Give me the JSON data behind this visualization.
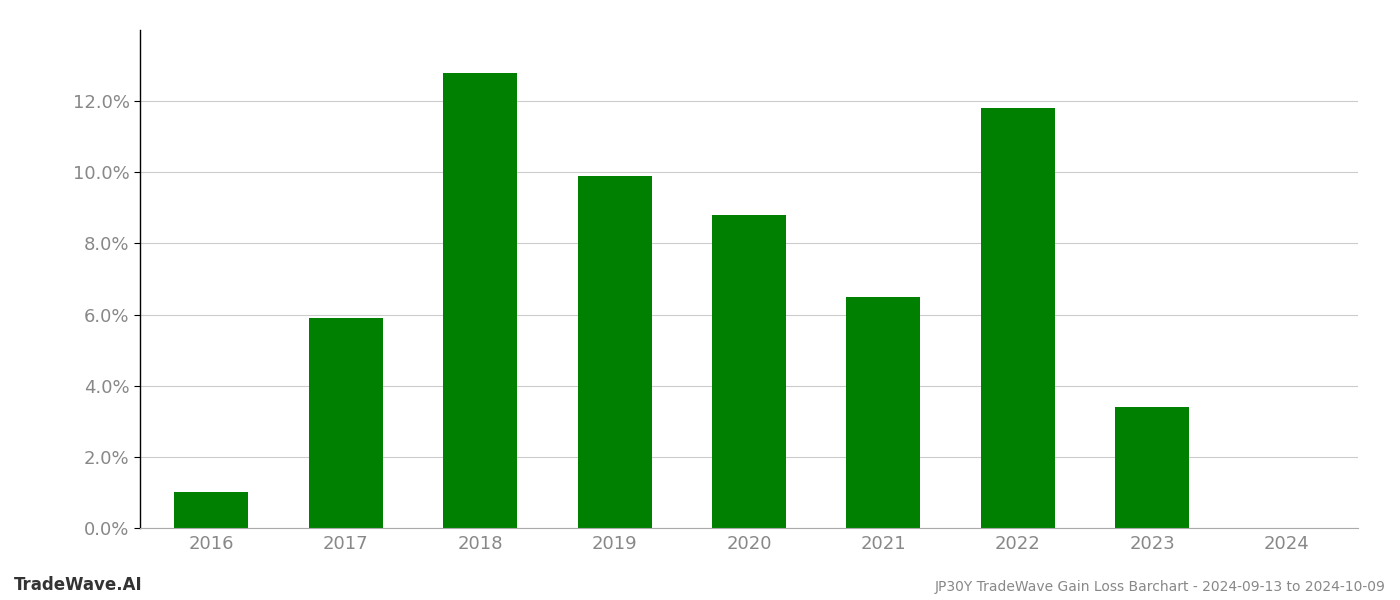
{
  "years": [
    "2016",
    "2017",
    "2018",
    "2019",
    "2020",
    "2021",
    "2022",
    "2023",
    "2024"
  ],
  "values": [
    0.01,
    0.059,
    0.128,
    0.099,
    0.088,
    0.065,
    0.118,
    0.034,
    0.0
  ],
  "bar_color": "#008000",
  "background_color": "#ffffff",
  "grid_color": "#cccccc",
  "ylabel_color": "#888888",
  "xlabel_color": "#888888",
  "title_text": "JP30Y TradeWave Gain Loss Barchart - 2024-09-13 to 2024-10-09",
  "watermark_text": "TradeWave.AI",
  "ylim": [
    0,
    0.14
  ],
  "yticks": [
    0.0,
    0.02,
    0.04,
    0.06,
    0.08,
    0.1,
    0.12
  ],
  "title_fontsize": 10,
  "tick_fontsize": 13,
  "watermark_fontsize": 12,
  "bar_width": 0.55
}
